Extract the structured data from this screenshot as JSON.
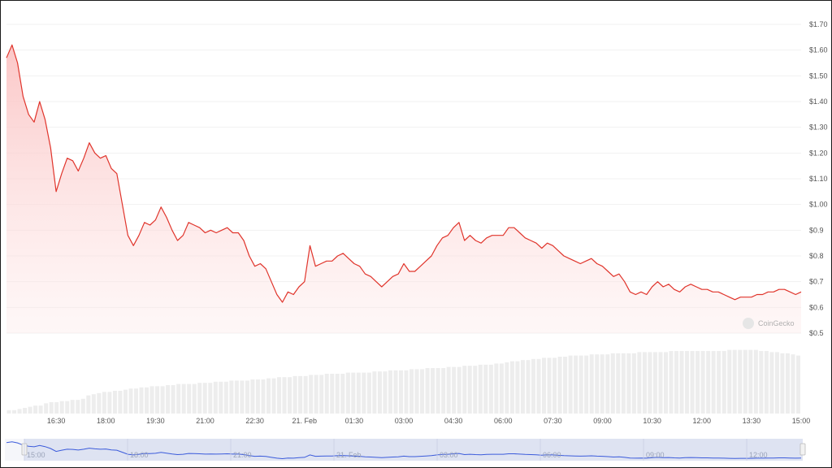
{
  "chart_data": {
    "type": "area",
    "title": "",
    "xlabel": "",
    "ylabel": "",
    "ylim": [
      0.5,
      1.7
    ],
    "y_ticks": [
      "$1.70",
      "$1.60",
      "$1.50",
      "$1.40",
      "$1.30",
      "$1.20",
      "$1.10",
      "$1.00",
      "$0.9",
      "$0.8",
      "$0.7",
      "$0.6",
      "$0.5"
    ],
    "x_ticks": [
      "16:30",
      "18:00",
      "19:30",
      "21:00",
      "22:30",
      "21. Feb",
      "01:30",
      "03:00",
      "04:30",
      "06:00",
      "07:30",
      "09:00",
      "10:30",
      "12:00",
      "13:30",
      "15:00"
    ],
    "series": [
      {
        "points": [
          [
            "15:00",
            1.57
          ],
          [
            "15:10",
            1.62
          ],
          [
            "15:20",
            1.55
          ],
          [
            "15:30",
            1.42
          ],
          [
            "15:40",
            1.35
          ],
          [
            "15:50",
            1.32
          ],
          [
            "16:00",
            1.4
          ],
          [
            "16:10",
            1.33
          ],
          [
            "16:20",
            1.22
          ],
          [
            "16:30",
            1.05
          ],
          [
            "16:40",
            1.12
          ],
          [
            "16:50",
            1.18
          ],
          [
            "17:00",
            1.17
          ],
          [
            "17:10",
            1.13
          ],
          [
            "17:20",
            1.18
          ],
          [
            "17:30",
            1.24
          ],
          [
            "17:40",
            1.2
          ],
          [
            "17:50",
            1.18
          ],
          [
            "18:00",
            1.19
          ],
          [
            "18:10",
            1.14
          ],
          [
            "18:20",
            1.12
          ],
          [
            "18:30",
            1.0
          ],
          [
            "18:40",
            0.88
          ],
          [
            "18:50",
            0.84
          ],
          [
            "19:00",
            0.88
          ],
          [
            "19:10",
            0.93
          ],
          [
            "19:20",
            0.92
          ],
          [
            "19:30",
            0.94
          ],
          [
            "19:40",
            0.99
          ],
          [
            "19:50",
            0.95
          ],
          [
            "20:00",
            0.9
          ],
          [
            "20:10",
            0.86
          ],
          [
            "20:20",
            0.88
          ],
          [
            "20:30",
            0.93
          ],
          [
            "20:40",
            0.92
          ],
          [
            "20:50",
            0.91
          ],
          [
            "21:00",
            0.89
          ],
          [
            "21:10",
            0.9
          ],
          [
            "21:20",
            0.89
          ],
          [
            "21:30",
            0.9
          ],
          [
            "21:40",
            0.91
          ],
          [
            "21:50",
            0.89
          ],
          [
            "22:00",
            0.89
          ],
          [
            "22:10",
            0.86
          ],
          [
            "22:20",
            0.8
          ],
          [
            "22:30",
            0.76
          ],
          [
            "22:40",
            0.77
          ],
          [
            "22:50",
            0.75
          ],
          [
            "23:00",
            0.7
          ],
          [
            "23:10",
            0.65
          ],
          [
            "23:20",
            0.62
          ],
          [
            "23:30",
            0.66
          ],
          [
            "23:40",
            0.65
          ],
          [
            "23:50",
            0.68
          ],
          [
            "00:00",
            0.7
          ],
          [
            "00:10",
            0.84
          ],
          [
            "00:20",
            0.76
          ],
          [
            "00:30",
            0.77
          ],
          [
            "00:40",
            0.78
          ],
          [
            "00:50",
            0.78
          ],
          [
            "01:00",
            0.8
          ],
          [
            "01:10",
            0.81
          ],
          [
            "01:20",
            0.79
          ],
          [
            "01:30",
            0.77
          ],
          [
            "01:40",
            0.76
          ],
          [
            "01:50",
            0.73
          ],
          [
            "02:00",
            0.72
          ],
          [
            "02:10",
            0.7
          ],
          [
            "02:20",
            0.68
          ],
          [
            "02:30",
            0.7
          ],
          [
            "02:40",
            0.72
          ],
          [
            "02:50",
            0.73
          ],
          [
            "03:00",
            0.77
          ],
          [
            "03:10",
            0.74
          ],
          [
            "03:20",
            0.74
          ],
          [
            "03:30",
            0.76
          ],
          [
            "03:40",
            0.78
          ],
          [
            "03:50",
            0.8
          ],
          [
            "04:00",
            0.84
          ],
          [
            "04:10",
            0.87
          ],
          [
            "04:20",
            0.88
          ],
          [
            "04:30",
            0.91
          ],
          [
            "04:40",
            0.93
          ],
          [
            "04:50",
            0.86
          ],
          [
            "05:00",
            0.88
          ],
          [
            "05:10",
            0.86
          ],
          [
            "05:20",
            0.85
          ],
          [
            "05:30",
            0.87
          ],
          [
            "05:40",
            0.88
          ],
          [
            "05:50",
            0.88
          ],
          [
            "06:00",
            0.88
          ],
          [
            "06:10",
            0.91
          ],
          [
            "06:20",
            0.91
          ],
          [
            "06:30",
            0.89
          ],
          [
            "06:40",
            0.87
          ],
          [
            "06:50",
            0.86
          ],
          [
            "07:00",
            0.85
          ],
          [
            "07:10",
            0.83
          ],
          [
            "07:20",
            0.85
          ],
          [
            "07:30",
            0.84
          ],
          [
            "07:40",
            0.82
          ],
          [
            "07:50",
            0.8
          ],
          [
            "08:00",
            0.79
          ],
          [
            "08:10",
            0.78
          ],
          [
            "08:20",
            0.77
          ],
          [
            "08:30",
            0.78
          ],
          [
            "08:40",
            0.79
          ],
          [
            "08:50",
            0.77
          ],
          [
            "09:00",
            0.76
          ],
          [
            "09:10",
            0.74
          ],
          [
            "09:20",
            0.72
          ],
          [
            "09:30",
            0.73
          ],
          [
            "09:40",
            0.7
          ],
          [
            "09:50",
            0.66
          ],
          [
            "10:00",
            0.65
          ],
          [
            "10:10",
            0.66
          ],
          [
            "10:20",
            0.65
          ],
          [
            "10:30",
            0.68
          ],
          [
            "10:40",
            0.7
          ],
          [
            "10:50",
            0.68
          ],
          [
            "11:00",
            0.69
          ],
          [
            "11:10",
            0.67
          ],
          [
            "11:20",
            0.66
          ],
          [
            "11:30",
            0.68
          ],
          [
            "11:40",
            0.69
          ],
          [
            "11:50",
            0.68
          ],
          [
            "12:00",
            0.67
          ],
          [
            "12:10",
            0.67
          ],
          [
            "12:20",
            0.66
          ],
          [
            "12:30",
            0.66
          ],
          [
            "12:40",
            0.65
          ],
          [
            "12:50",
            0.64
          ],
          [
            "13:00",
            0.63
          ],
          [
            "13:10",
            0.64
          ],
          [
            "13:20",
            0.64
          ],
          [
            "13:30",
            0.64
          ],
          [
            "13:40",
            0.65
          ],
          [
            "13:50",
            0.65
          ],
          [
            "14:00",
            0.66
          ],
          [
            "14:10",
            0.66
          ],
          [
            "14:20",
            0.67
          ],
          [
            "14:30",
            0.67
          ],
          [
            "14:40",
            0.66
          ],
          [
            "14:50",
            0.65
          ],
          [
            "15:00",
            0.66
          ]
        ]
      }
    ],
    "volume_relative": [
      0.03,
      0.03,
      0.04,
      0.05,
      0.06,
      0.07,
      0.07,
      0.09,
      0.1,
      0.1,
      0.11,
      0.11,
      0.12,
      0.12,
      0.13,
      0.16,
      0.17,
      0.18,
      0.19,
      0.19,
      0.2,
      0.2,
      0.21,
      0.22,
      0.22,
      0.23,
      0.23,
      0.24,
      0.24,
      0.24,
      0.25,
      0.25,
      0.26,
      0.26,
      0.26,
      0.26,
      0.27,
      0.27,
      0.27,
      0.28,
      0.28,
      0.28,
      0.29,
      0.29,
      0.29,
      0.29,
      0.3,
      0.3,
      0.3,
      0.31,
      0.31,
      0.32,
      0.32,
      0.32,
      0.33,
      0.33,
      0.33,
      0.34,
      0.34,
      0.34,
      0.35,
      0.35,
      0.35,
      0.35,
      0.36,
      0.36,
      0.36,
      0.36,
      0.36,
      0.37,
      0.37,
      0.37,
      0.38,
      0.38,
      0.38,
      0.38,
      0.39,
      0.39,
      0.39,
      0.4,
      0.4,
      0.4,
      0.4,
      0.41,
      0.41,
      0.41,
      0.42,
      0.42,
      0.42,
      0.43,
      0.43,
      0.43,
      0.44,
      0.44,
      0.45,
      0.46,
      0.46,
      0.47,
      0.47,
      0.48,
      0.48,
      0.49,
      0.49,
      0.49,
      0.5,
      0.5,
      0.51,
      0.51,
      0.51,
      0.51,
      0.52,
      0.52,
      0.52,
      0.52,
      0.53,
      0.53,
      0.53,
      0.53,
      0.53,
      0.54,
      0.54,
      0.54,
      0.54,
      0.54,
      0.54,
      0.55,
      0.55,
      0.55,
      0.55,
      0.55,
      0.55,
      0.55,
      0.55,
      0.55,
      0.55,
      0.55,
      0.56,
      0.56,
      0.56,
      0.56,
      0.56,
      0.56,
      0.55,
      0.55,
      0.54,
      0.54,
      0.53,
      0.53,
      0.52,
      0.51
    ],
    "navigator_ticks": [
      "15:00",
      "18:00",
      "21:00",
      "21. Feb",
      "03:00",
      "06:00",
      "09:00",
      "12:00"
    ],
    "grid": true,
    "colors": {
      "line": "#e0342b",
      "area": "#fde3e3",
      "volume": "#ededed",
      "navigator_fill": "#d9dff0",
      "navigator_line": "#3b5bdb"
    },
    "watermark": "CoinGecko"
  }
}
